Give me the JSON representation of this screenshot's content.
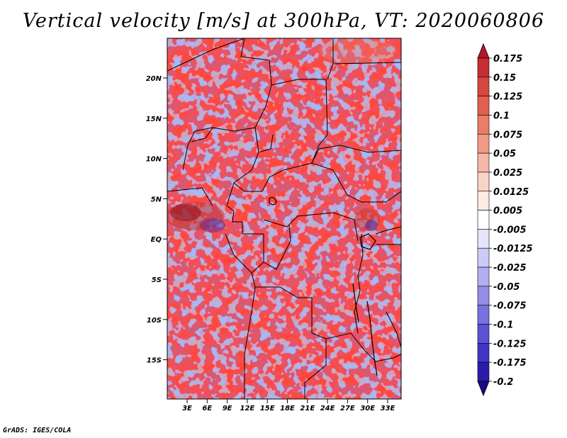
{
  "title": "Vertical velocity [m/s] at 300hPa, VT: 2020060806",
  "credit": "GrADS: IGES/COLA",
  "map": {
    "lat_labels": [
      "20N",
      "15N",
      "10N",
      "5N",
      "EQ",
      "5S",
      "10S",
      "15S"
    ],
    "lon_labels": [
      "3E",
      "6E",
      "9E",
      "12E",
      "15E",
      "18E",
      "21E",
      "24E",
      "27E",
      "30E",
      "33E"
    ]
  },
  "colorbar": {
    "labels": [
      "0.175",
      "0.15",
      "0.125",
      "0.1",
      "0.075",
      "0.05",
      "0.025",
      "0.0125",
      "0.005",
      "-0.005",
      "-0.0125",
      "-0.025",
      "-0.05",
      "-0.075",
      "-0.1",
      "-0.125",
      "-0.175",
      "-0.2"
    ],
    "colors": [
      "#b2182b",
      "#c72d33",
      "#d6473f",
      "#e1604f",
      "#ea7c68",
      "#f19a88",
      "#f6b7a8",
      "#fad3c8",
      "#fdebe4",
      "#ffffff",
      "#e6e4fb",
      "#cccaf6",
      "#b2aef1",
      "#948ee9",
      "#7771e0",
      "#5b52d4",
      "#3f36c5",
      "#2a1cab",
      "#1a0a8a"
    ]
  },
  "colors": {
    "positive": "#e65c5c",
    "negative": "#6464e6",
    "border": "#000000"
  }
}
